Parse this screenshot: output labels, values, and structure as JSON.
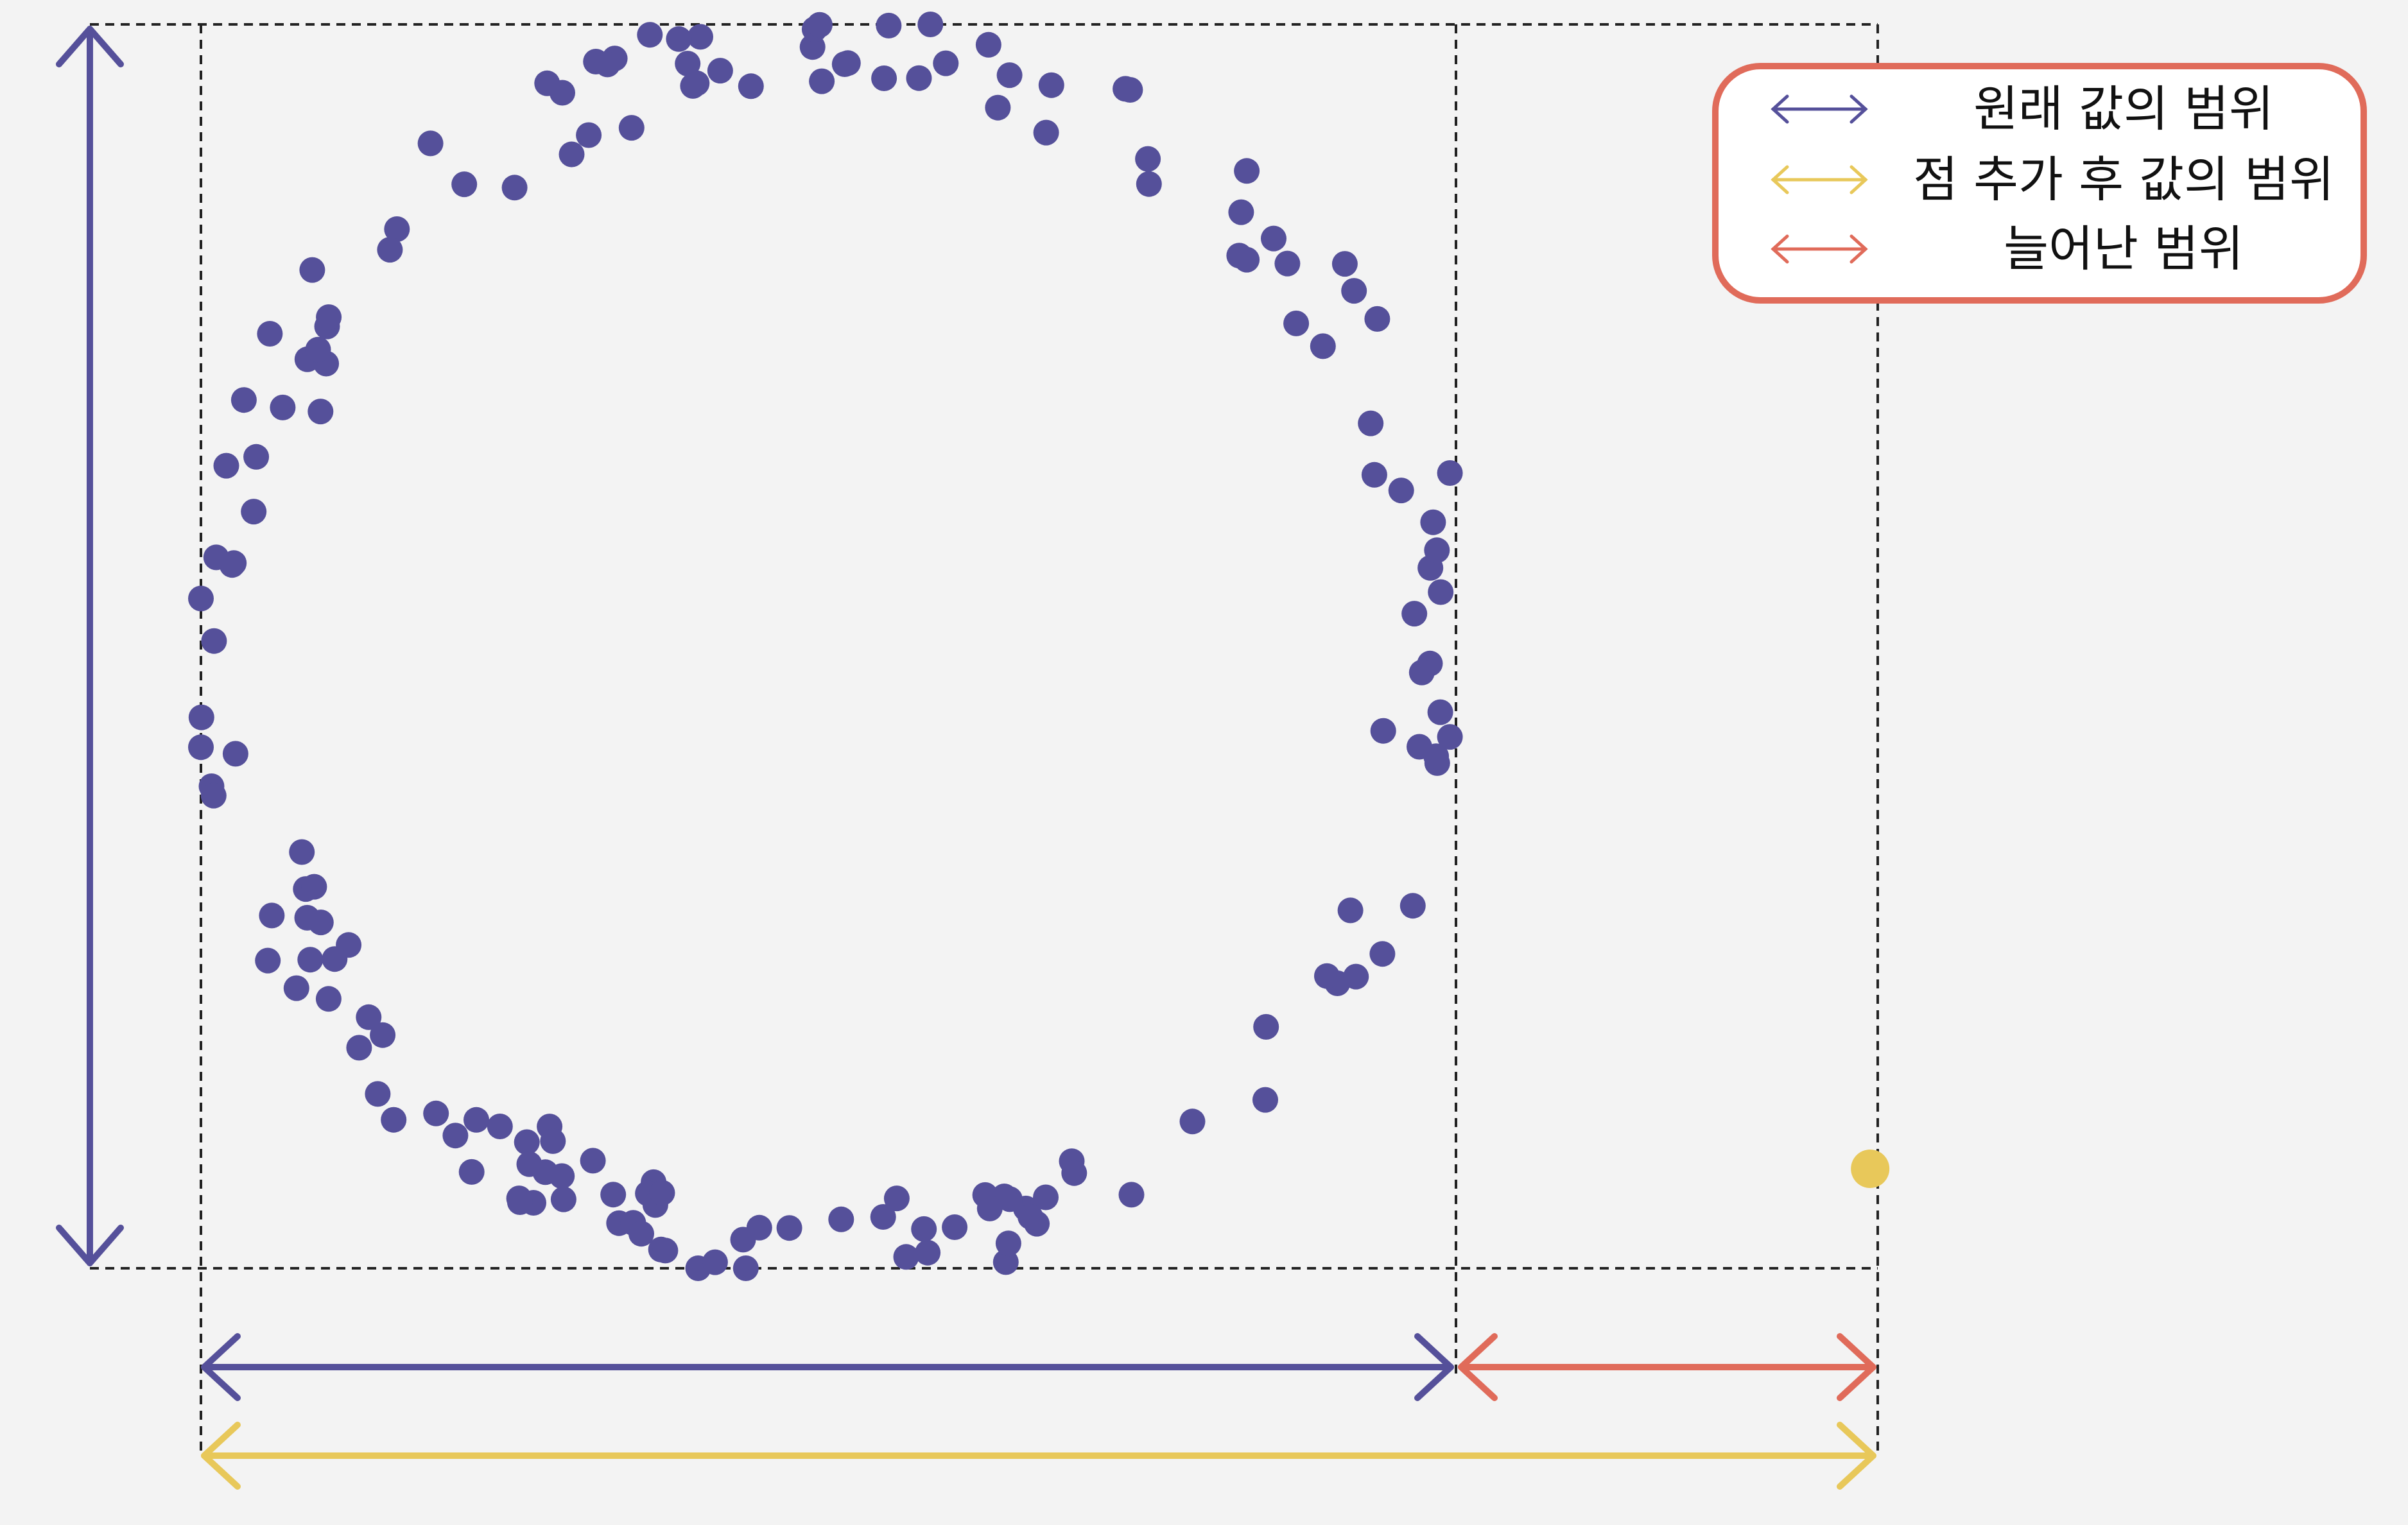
{
  "colors": {
    "background": "#f3f3f3",
    "original_range": "#55509a",
    "after_range": "#e8c85a",
    "extended_range": "#e06b5a",
    "guide_line": "#222222"
  },
  "legend": {
    "items": [
      {
        "label": "원래 값의 범위",
        "color": "#55509a"
      },
      {
        "label": "점 추가 후 값의 범위",
        "color": "#e8c85a"
      },
      {
        "label": "늘어난 범위",
        "color": "#e06b5a"
      }
    ]
  },
  "chart_data": {
    "type": "scatter",
    "ring": {
      "center": [
        0.5,
        0.5
      ],
      "radius": 0.48,
      "count": 170,
      "jitter": 0.035
    },
    "added_point": {
      "x": 1.33,
      "y": 0.08
    },
    "xlim_original": [
      0,
      1
    ],
    "ylim_original": [
      0,
      1
    ],
    "xlim_after": [
      0,
      1.34
    ]
  }
}
